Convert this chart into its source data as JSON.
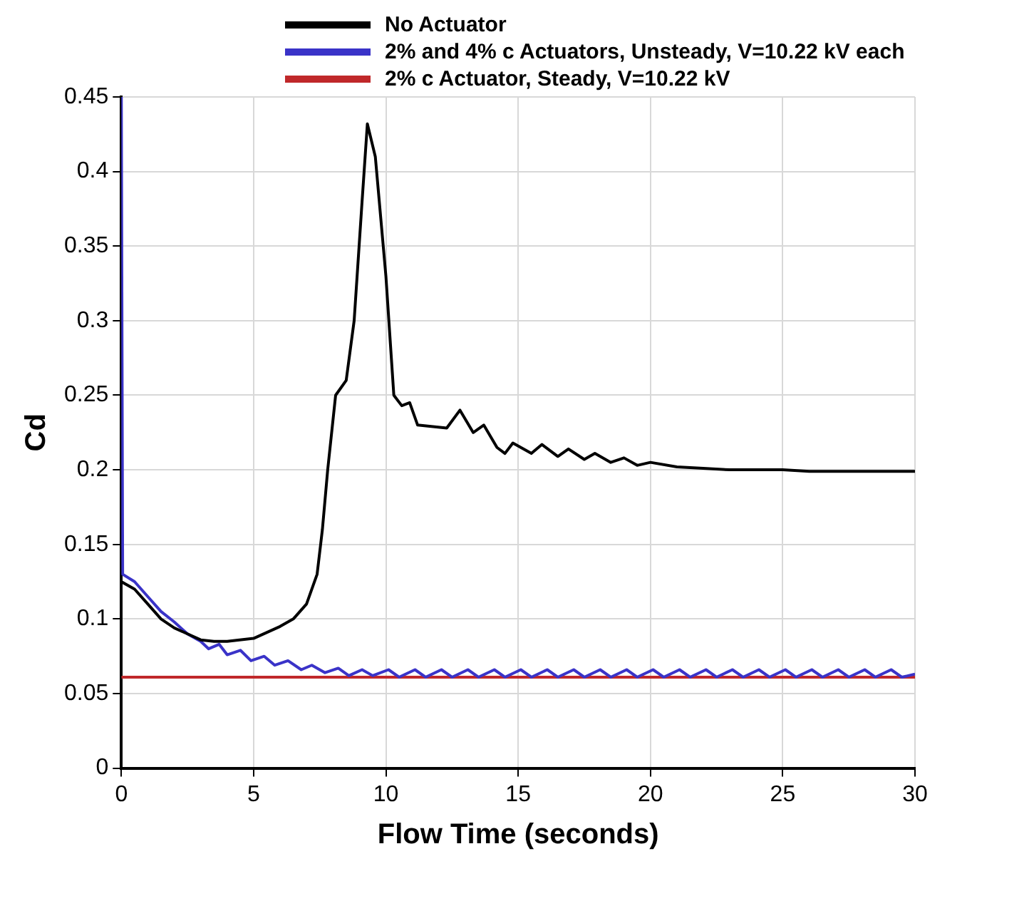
{
  "chart_data": {
    "type": "line",
    "xlabel": "Flow Time (seconds)",
    "ylabel": "Cd",
    "xlim": [
      0,
      30
    ],
    "xticks": [
      0,
      5,
      10,
      15,
      20,
      25,
      30
    ],
    "ylim": [
      0,
      0.45
    ],
    "yticks": [
      0,
      0.05,
      0.1,
      0.15,
      0.2,
      0.25,
      0.3,
      0.35,
      0.4,
      0.45
    ],
    "grid": true,
    "legend": "top",
    "line_style": "solid",
    "marker": "none",
    "series": [
      {
        "name": "No Actuator",
        "color": "#000000",
        "x": [
          0,
          0.5,
          1,
          1.5,
          2,
          2.5,
          3,
          3.5,
          4,
          5,
          6,
          6.5,
          7,
          7.4,
          7.6,
          7.8,
          8.1,
          8.5,
          8.8,
          9.1,
          9.3,
          9.6,
          10,
          10.3,
          10.6,
          10.9,
          11.2,
          12.3,
          12.8,
          13.3,
          13.7,
          14.2,
          14.5,
          14.8,
          15.5,
          15.9,
          16.5,
          16.9,
          17.5,
          17.9,
          18.5,
          19,
          19.5,
          20,
          21,
          22,
          23,
          24,
          25,
          26,
          27,
          28,
          29,
          30
        ],
        "values": [
          0.125,
          0.12,
          0.11,
          0.1,
          0.094,
          0.09,
          0.086,
          0.085,
          0.085,
          0.087,
          0.095,
          0.1,
          0.11,
          0.13,
          0.16,
          0.2,
          0.25,
          0.26,
          0.3,
          0.38,
          0.432,
          0.41,
          0.33,
          0.25,
          0.243,
          0.245,
          0.23,
          0.228,
          0.24,
          0.225,
          0.23,
          0.215,
          0.211,
          0.218,
          0.211,
          0.217,
          0.209,
          0.214,
          0.207,
          0.211,
          0.205,
          0.208,
          0.203,
          0.205,
          0.202,
          0.201,
          0.2,
          0.2,
          0.2,
          0.199,
          0.199,
          0.199,
          0.199,
          0.199
        ]
      },
      {
        "name": "2% and 4% c Actuators, Unsteady, V=10.22 kV each",
        "color": "#3a33c8",
        "x": [
          0,
          0.05,
          0.5,
          1,
          1.5,
          2,
          2.5,
          3,
          3.3,
          3.7,
          4,
          4.5,
          4.9,
          5.4,
          5.8,
          6.3,
          6.8,
          7.2,
          7.7,
          8.2,
          8.6,
          9.1,
          9.5,
          10.1,
          10.5,
          11.1,
          11.5,
          12.1,
          12.5,
          13.1,
          13.5,
          14.1,
          14.5,
          15.1,
          15.5,
          16.1,
          16.5,
          17.1,
          17.5,
          18.1,
          18.5,
          19.1,
          19.5,
          20.1,
          20.5,
          21.1,
          21.5,
          22.1,
          22.5,
          23.1,
          23.5,
          24.1,
          24.5,
          25.1,
          25.5,
          26.1,
          26.5,
          27.1,
          27.5,
          28.1,
          28.5,
          29.1,
          29.5,
          30
        ],
        "values": [
          0.45,
          0.13,
          0.125,
          0.115,
          0.105,
          0.098,
          0.09,
          0.085,
          0.08,
          0.083,
          0.076,
          0.079,
          0.072,
          0.075,
          0.069,
          0.072,
          0.066,
          0.069,
          0.064,
          0.067,
          0.062,
          0.066,
          0.062,
          0.066,
          0.061,
          0.066,
          0.061,
          0.066,
          0.061,
          0.066,
          0.061,
          0.066,
          0.061,
          0.066,
          0.061,
          0.066,
          0.061,
          0.066,
          0.061,
          0.066,
          0.061,
          0.066,
          0.061,
          0.066,
          0.061,
          0.066,
          0.061,
          0.066,
          0.061,
          0.066,
          0.061,
          0.066,
          0.061,
          0.066,
          0.061,
          0.066,
          0.061,
          0.066,
          0.061,
          0.066,
          0.061,
          0.066,
          0.061,
          0.063
        ]
      },
      {
        "name": "2% c Actuator, Steady, V=10.22 kV",
        "color": "#c0282a",
        "x": [
          0,
          30
        ],
        "values": [
          0.061,
          0.061
        ]
      }
    ]
  }
}
